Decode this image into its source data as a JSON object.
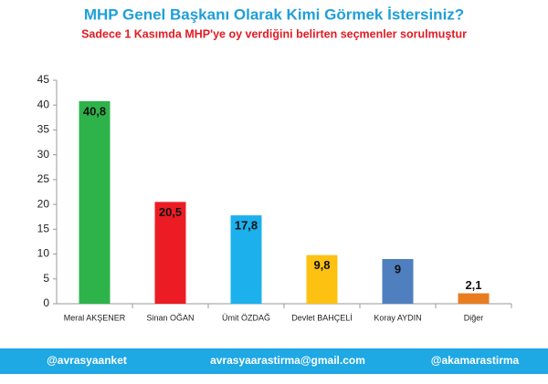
{
  "chart_data": {
    "type": "bar",
    "title": "MHP Genel Başkanı Olarak Kimi Görmek İstersiniz?",
    "subtitle": "Sadece 1 Kasımda MHP'ye oy verdiğini belirten seçmenler sorulmuştur",
    "categories": [
      "Meral AKŞENER",
      "Sinan OĞAN",
      "Ümit ÖZDAĞ",
      "Devlet BAHÇELİ",
      "Koray AYDIN",
      "Diğer"
    ],
    "values": [
      40.8,
      20.5,
      17.8,
      9.8,
      9,
      2.1
    ],
    "value_labels": [
      "40,8",
      "20,5",
      "17,8",
      "9,8",
      "9",
      "2,1"
    ],
    "colors": [
      "#2eb34b",
      "#ec1c24",
      "#1cb1ec",
      "#fcc111",
      "#4f7fbf",
      "#e97c1f"
    ],
    "ylim": [
      0,
      45
    ],
    "yticks": [
      0,
      5,
      10,
      15,
      20,
      25,
      30,
      35,
      40,
      45
    ],
    "grid": false
  },
  "footer": [
    "@avrasyaanket",
    "avrasyaarastirma@gmail.com",
    "@akamarastirma"
  ]
}
